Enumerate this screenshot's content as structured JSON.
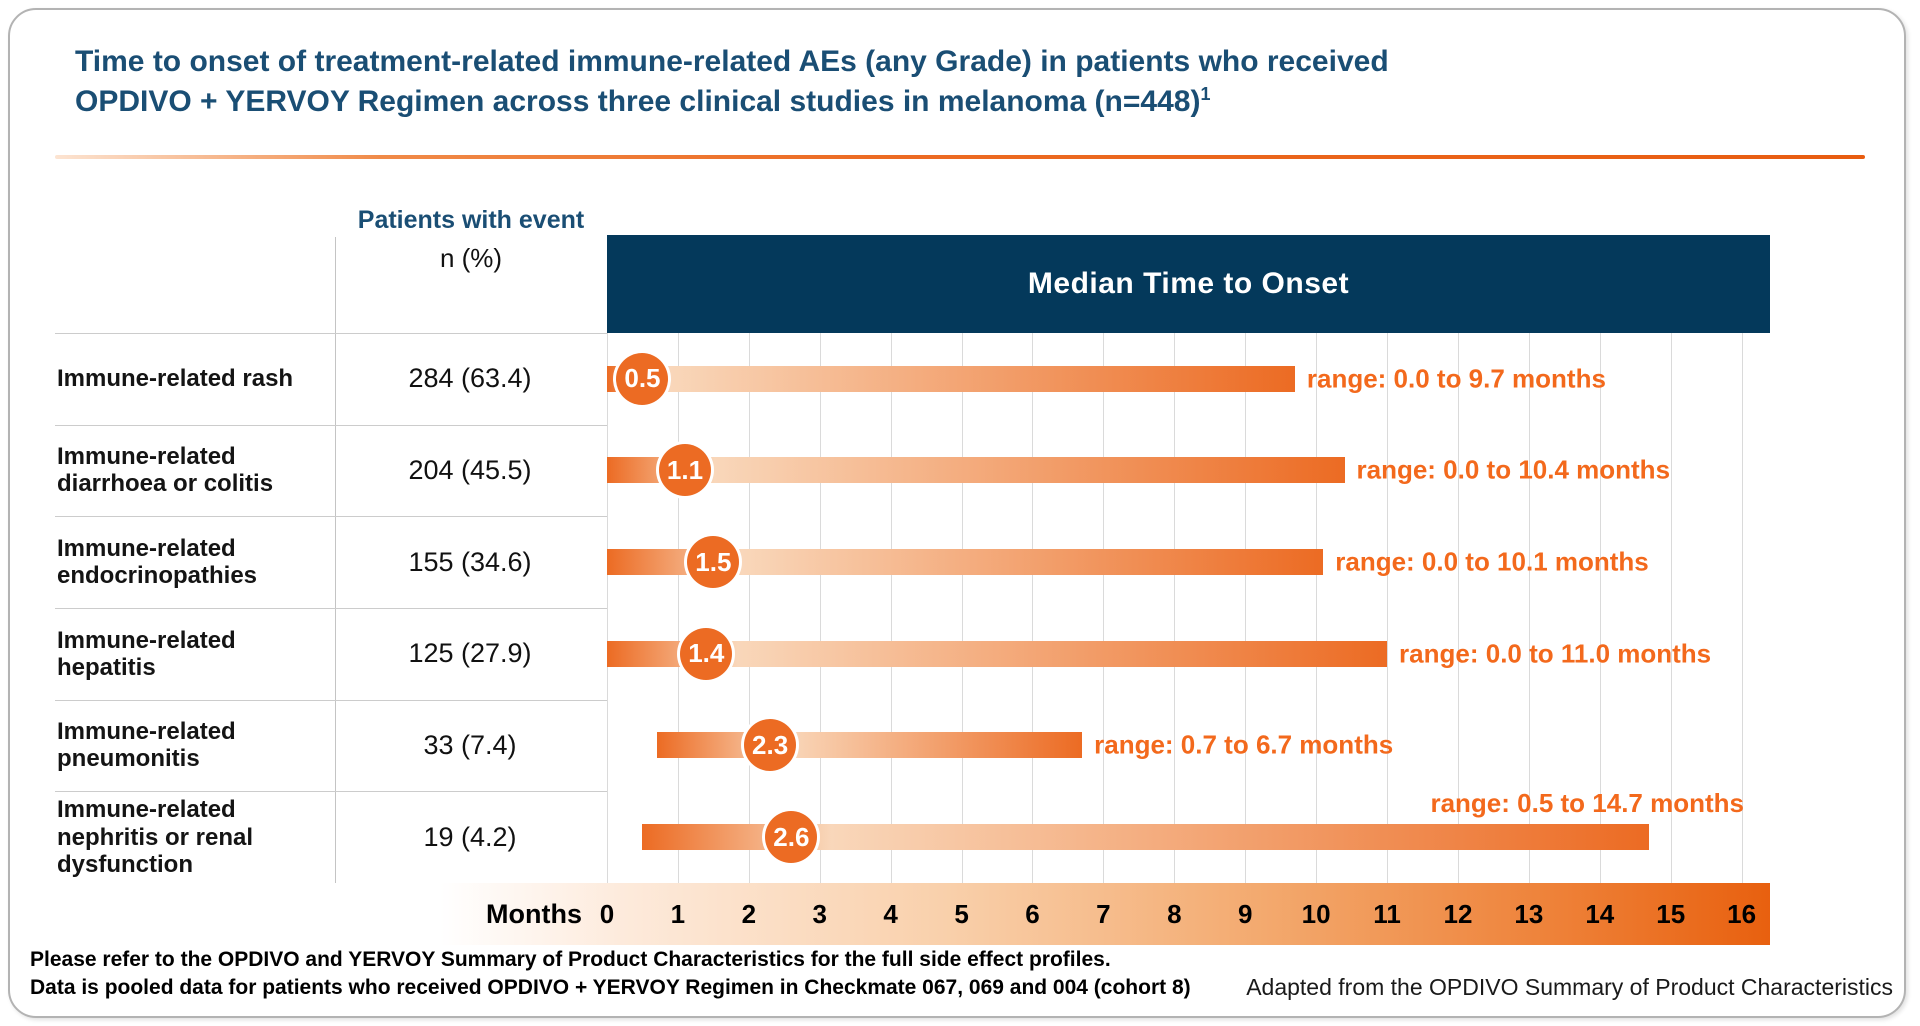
{
  "header": {
    "title_line1": "Time to onset of treatment-related immune-related AEs (any Grade) in patients who received",
    "title_line2": "OPDIVO + YERVOY Regimen across three clinical studies in melanoma (n=448)",
    "title_superscript": "1"
  },
  "table": {
    "col_header": "Patients with event",
    "col_subheader": "n (%)"
  },
  "chart_data": {
    "type": "bar",
    "title": "Median Time to Onset",
    "xlabel": "Months",
    "xlim": [
      0,
      16.4
    ],
    "x_ticks": [
      0,
      1,
      2,
      3,
      4,
      5,
      6,
      7,
      8,
      9,
      10,
      11,
      12,
      13,
      14,
      15,
      16
    ],
    "grid": true,
    "rows": [
      {
        "label": "Immune-related rash",
        "n_pct": "284 (63.4)",
        "median": "0.5",
        "range_start": 0.0,
        "range_end": 9.7,
        "range_label": "range: 0.0 to 9.7 months",
        "range_label_position": "right"
      },
      {
        "label": "Immune-related diarrhoea or colitis",
        "n_pct": "204 (45.5)",
        "median": "1.1",
        "range_start": 0.0,
        "range_end": 10.4,
        "range_label": "range: 0.0 to 10.4 months",
        "range_label_position": "right"
      },
      {
        "label": "Immune-related endocrinopathies",
        "n_pct": "155 (34.6)",
        "median": "1.5",
        "range_start": 0.0,
        "range_end": 10.1,
        "range_label": "range: 0.0 to 10.1 months",
        "range_label_position": "right"
      },
      {
        "label": "Immune-related hepatitis",
        "n_pct": "125 (27.9)",
        "median": "1.4",
        "range_start": 0.0,
        "range_end": 11.0,
        "range_label": "range: 0.0 to 11.0 months",
        "range_label_position": "right"
      },
      {
        "label": "Immune-related pneumonitis",
        "n_pct": "33 (7.4)",
        "median": "2.3",
        "range_start": 0.7,
        "range_end": 6.7,
        "range_label": "range: 0.7 to 6.7 months",
        "range_label_position": "right"
      },
      {
        "label": "Immune-related nephritis or renal dysfunction",
        "n_pct": "19 (4.2)",
        "median": "2.6",
        "range_start": 0.5,
        "range_end": 14.7,
        "range_label": "range: 0.5 to 14.7 months",
        "range_label_position": "above"
      }
    ],
    "colors": {
      "accent_orange": "#ec6b23",
      "bar_light": "#f9d7ba",
      "navy_header": "#04395b",
      "title_blue": "#1a4e74",
      "range_text_orange": "#f3691c"
    }
  },
  "footer": {
    "line1": "Please refer to the OPDIVO and YERVOY Summary of Product Characteristics for the full side effect profiles.",
    "line2": "Data is pooled data for patients who received OPDIVO + YERVOY Regimen in Checkmate 067, 069 and 004 (cohort 8)",
    "attribution": "Adapted from the OPDIVO Summary of Product Characteristics"
  }
}
